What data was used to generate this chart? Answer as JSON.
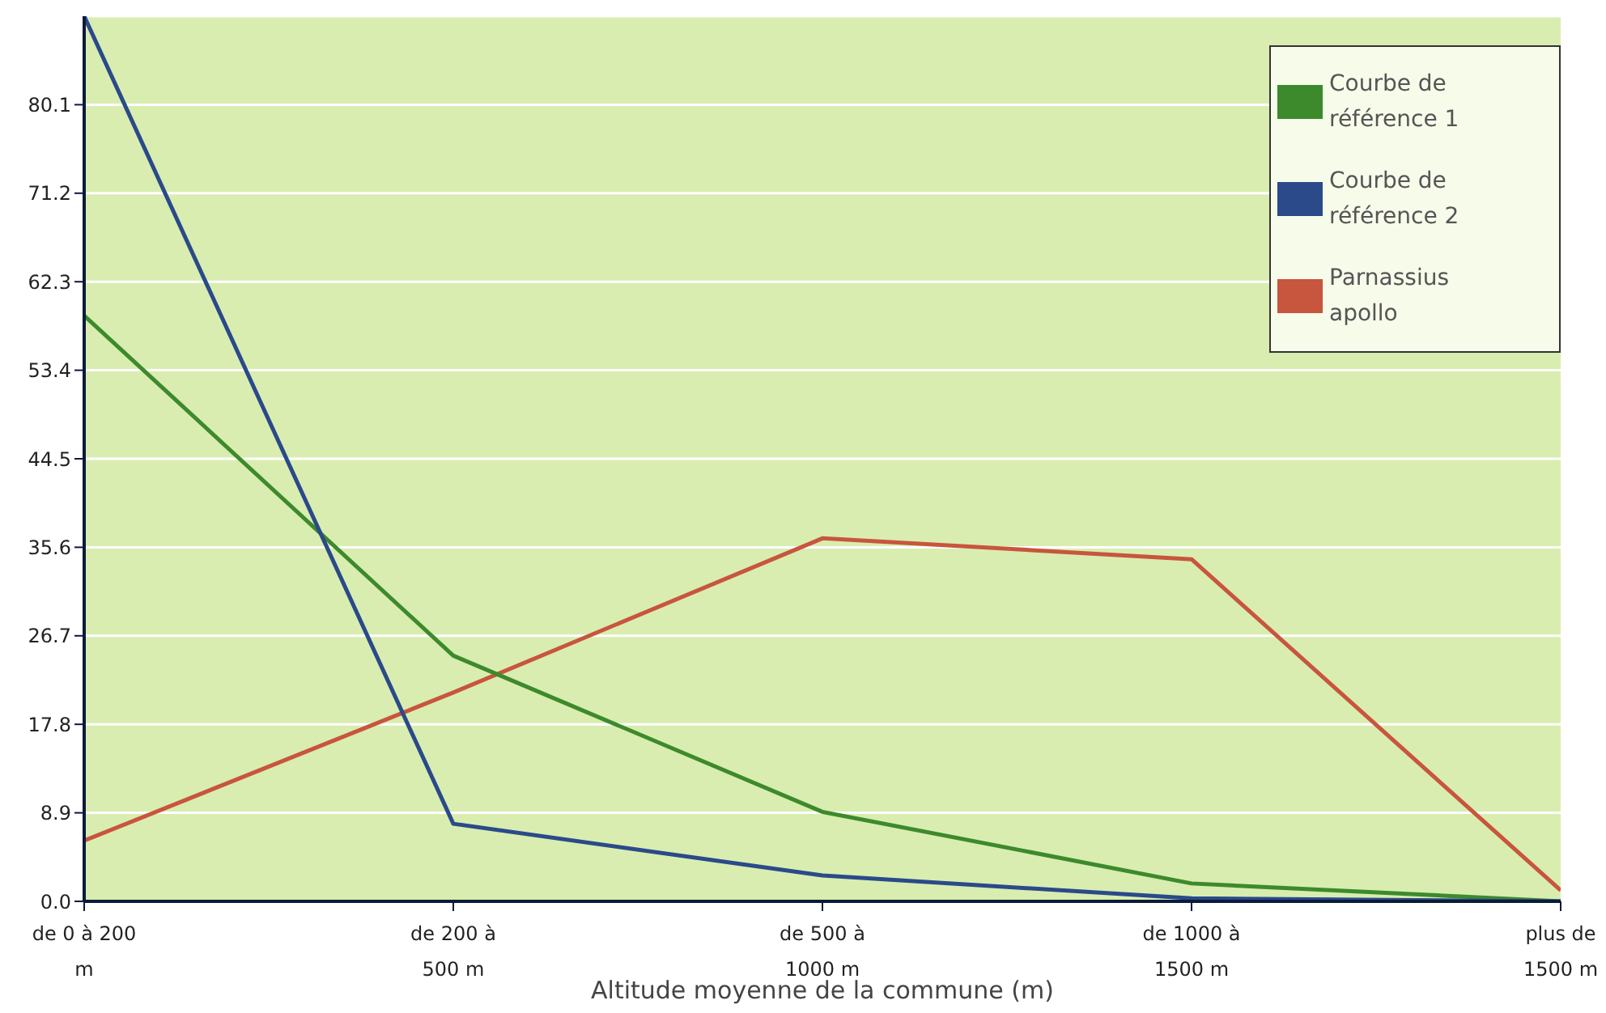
{
  "chart_data": {
    "type": "line",
    "xlabel": "Altitude moyenne de la commune (m)",
    "categories": [
      "de 0 à 200 m",
      "de 200 à 500 m",
      "de 500 à 1000 m",
      "de 1000 à 1500 m",
      "plus de 1500 m"
    ],
    "series": [
      {
        "name": "Parnassius apollo",
        "color": "#c8553d",
        "values": [
          6.1,
          21.0,
          36.5,
          34.4,
          1.1
        ]
      },
      {
        "name": "Courbe de référence 1",
        "color": "#3d8a2c",
        "values": [
          58.9,
          24.7,
          9.0,
          1.8,
          0
        ]
      },
      {
        "name": "Courbe de référence 2",
        "color": "#2a4a8a",
        "values": [
          89,
          7.8,
          2.6,
          0.3,
          0
        ]
      }
    ],
    "ylim": [
      0,
      89
    ],
    "yticks": [
      {
        "value": 0,
        "label": "0.0"
      },
      8.9,
      17.8,
      26.7,
      35.6,
      44.5,
      53.4,
      62.3,
      71.2,
      80.1
    ],
    "grid": "y",
    "legend": "top right",
    "marker": "none",
    "line_style": "solid"
  }
}
